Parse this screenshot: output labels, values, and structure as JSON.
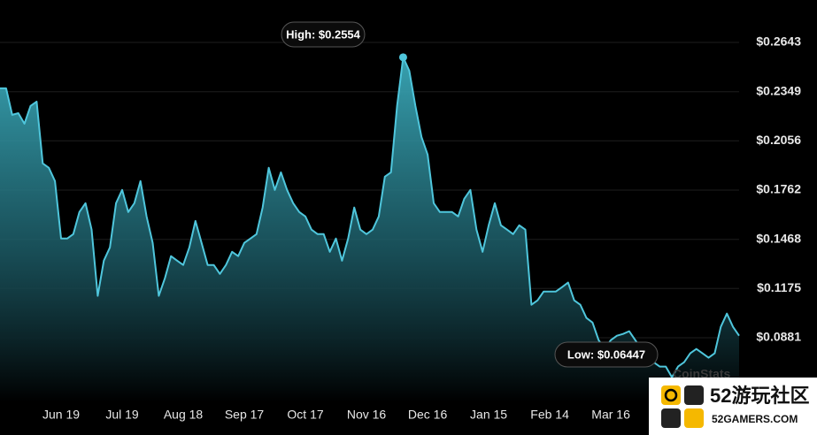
{
  "chart_data": {
    "type": "area",
    "color": "#4fc6dc",
    "annotations": [
      "High: $0.2554",
      "Low: $0.06447"
    ],
    "watermark": "CoinStats",
    "ylim": [
      0.0496,
      0.2896
    ],
    "yticks": [
      {
        "value": 0.2643,
        "label": "$0.2643"
      },
      {
        "value": 0.2349,
        "label": "$0.2349"
      },
      {
        "value": 0.2056,
        "label": "$0.2056"
      },
      {
        "value": 0.1762,
        "label": "$0.1762"
      },
      {
        "value": 0.1468,
        "label": "$0.1468"
      },
      {
        "value": 0.1175,
        "label": "$0.1175"
      },
      {
        "value": 0.0881,
        "label": "$0.0881"
      }
    ],
    "grid": true,
    "categories": [
      null,
      null,
      null,
      null,
      null,
      null,
      null,
      null,
      null,
      null,
      "Jun 19",
      null,
      null,
      null,
      null,
      null,
      null,
      null,
      null,
      null,
      "Jul 19",
      null,
      null,
      null,
      null,
      null,
      null,
      null,
      null,
      null,
      "Aug 18",
      null,
      null,
      null,
      null,
      null,
      null,
      null,
      null,
      null,
      "Sep 17",
      null,
      null,
      null,
      null,
      null,
      null,
      null,
      null,
      null,
      "Oct 17",
      null,
      null,
      null,
      null,
      null,
      null,
      null,
      null,
      null,
      "Nov 16",
      null,
      null,
      null,
      null,
      null,
      null,
      null,
      null,
      null,
      "Dec 16",
      null,
      null,
      null,
      null,
      null,
      null,
      null,
      null,
      null,
      "Jan 15",
      null,
      null,
      null,
      null,
      null,
      null,
      null,
      null,
      null,
      "Feb 14",
      null,
      null,
      null,
      null,
      null,
      null,
      null,
      null,
      null,
      "Mar 16",
      null,
      null,
      null,
      null,
      null,
      null,
      null,
      null,
      null,
      null,
      null,
      null,
      null,
      null,
      null,
      null,
      null,
      null,
      null,
      null,
      null
    ],
    "values": [
      0.2369,
      0.2369,
      0.2211,
      0.2221,
      0.2158,
      0.2264,
      0.229,
      0.1921,
      0.1895,
      0.1816,
      0.1473,
      0.1473,
      0.1499,
      0.1631,
      0.1684,
      0.1526,
      0.1131,
      0.1341,
      0.142,
      0.1684,
      0.1763,
      0.1631,
      0.1684,
      0.1816,
      0.1605,
      0.1447,
      0.1131,
      0.1236,
      0.1368,
      0.1341,
      0.1315,
      0.142,
      0.1578,
      0.1447,
      0.1315,
      0.1315,
      0.1262,
      0.1315,
      0.1394,
      0.1368,
      0.1447,
      0.1473,
      0.1499,
      0.1658,
      0.1895,
      0.1763,
      0.1868,
      0.1763,
      0.1684,
      0.1631,
      0.1605,
      0.1526,
      0.1499,
      0.1499,
      0.1394,
      0.1473,
      0.1341,
      0.1473,
      0.1658,
      0.1526,
      0.1499,
      0.1526,
      0.1605,
      0.1842,
      0.1868,
      0.2264,
      0.2554,
      0.2474,
      0.2264,
      0.2079,
      0.1974,
      0.1684,
      0.1631,
      0.1631,
      0.1631,
      0.1605,
      0.171,
      0.1763,
      0.1526,
      0.1394,
      0.1552,
      0.1684,
      0.1552,
      0.1526,
      0.1499,
      0.1552,
      0.1526,
      0.1078,
      0.1104,
      0.1157,
      0.1157,
      0.1157,
      0.1183,
      0.121,
      0.1104,
      0.1078,
      0.0999,
      0.0972,
      0.0867,
      0.0814,
      0.0867,
      0.0893,
      0.0904,
      0.092,
      0.0867,
      0.0814,
      0.0788,
      0.0735,
      0.0709,
      0.0709,
      0.0645,
      0.0709,
      0.0735,
      0.0788,
      0.0814,
      0.0788,
      0.0762,
      0.0788,
      0.0946,
      0.1025,
      0.0946,
      0.0893
    ]
  },
  "overlay": {
    "title": "52游玩社区",
    "subtitle": "52GAMERS.COM"
  }
}
